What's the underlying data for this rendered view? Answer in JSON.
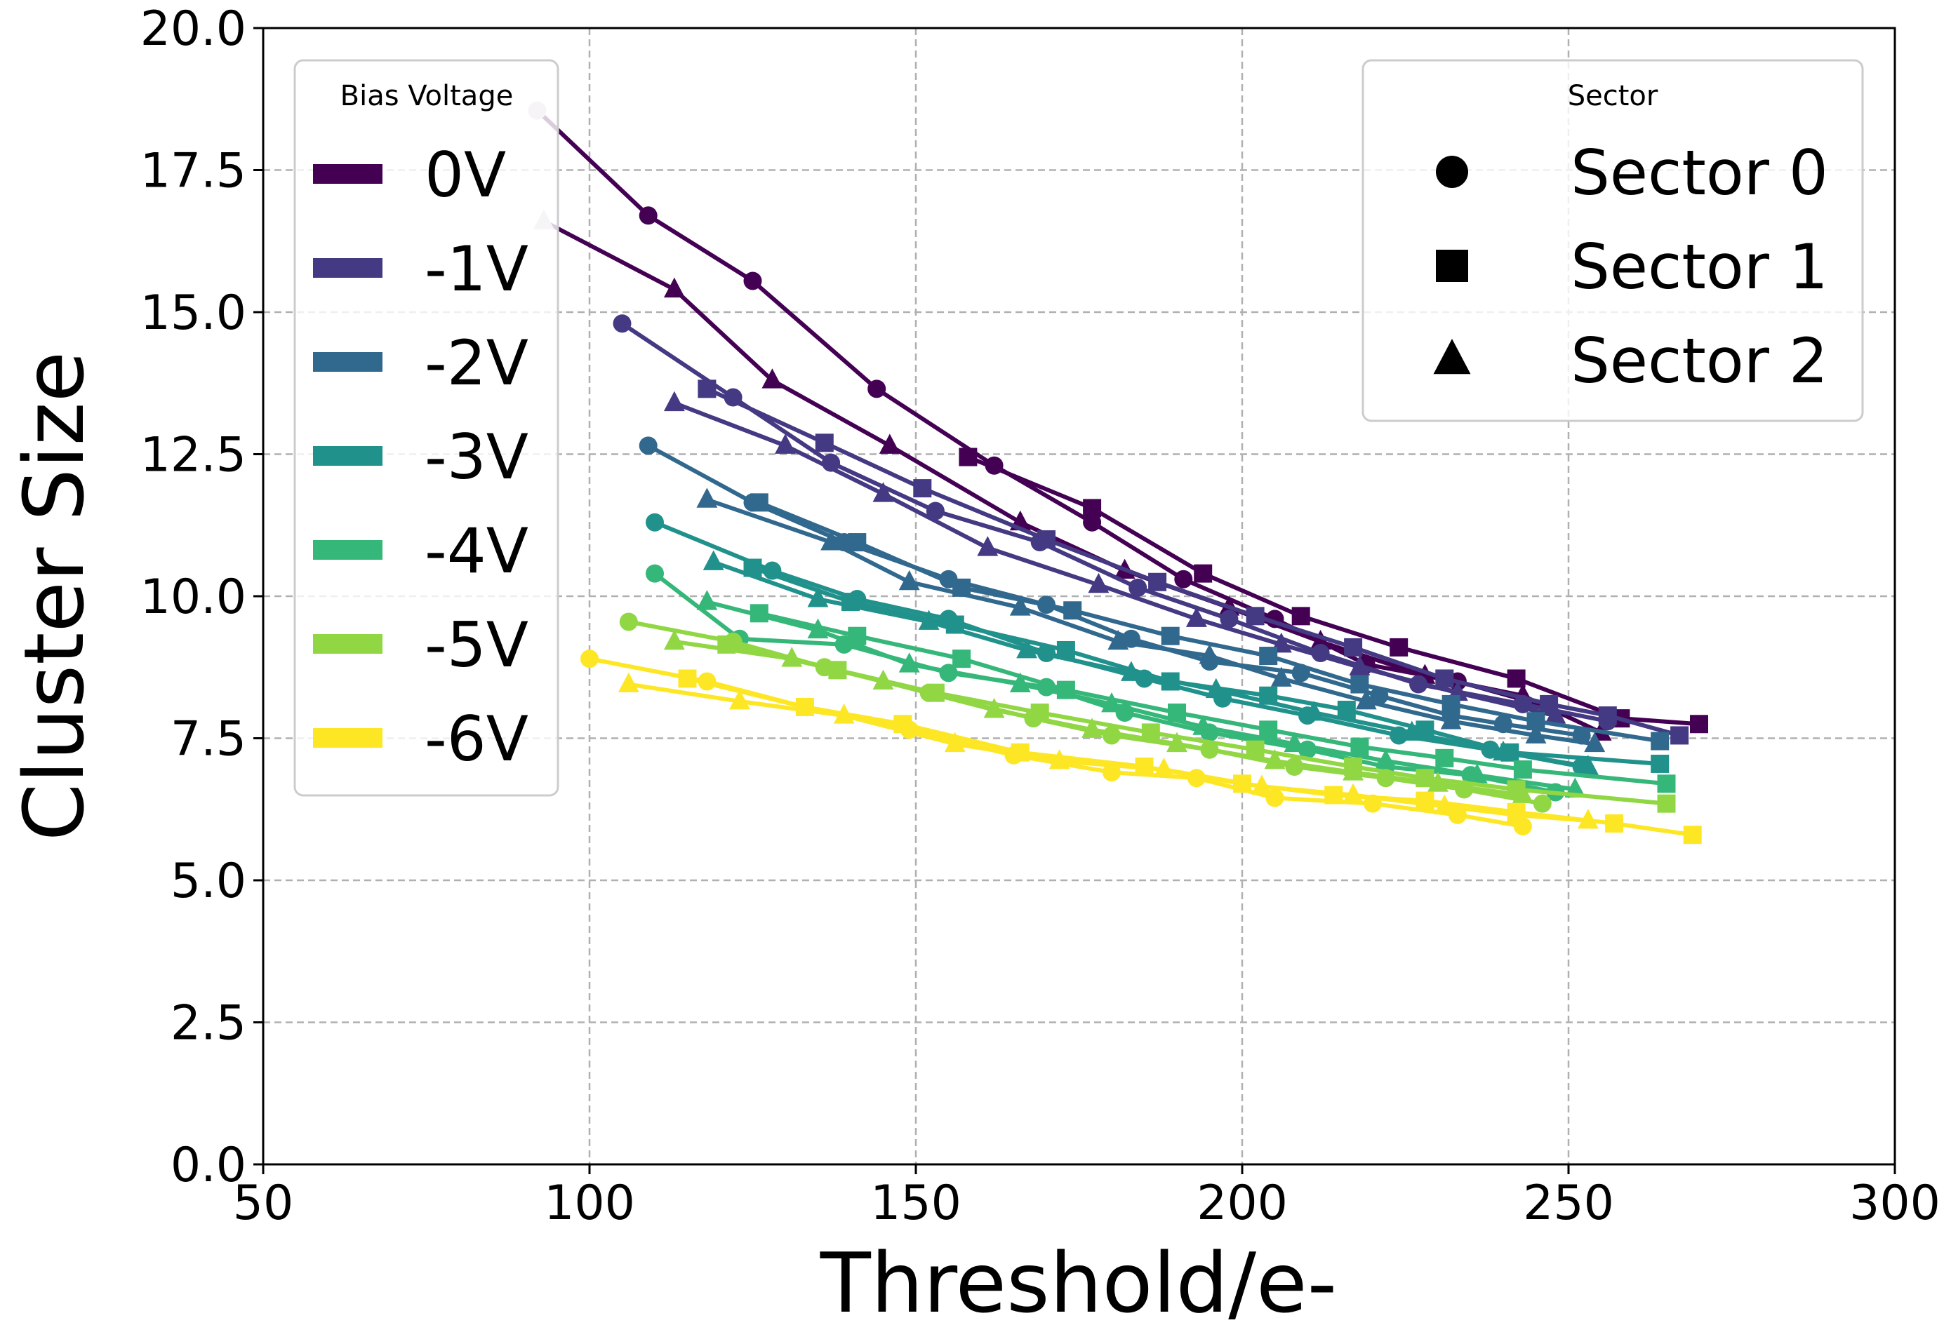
{
  "chart_data": {
    "type": "line",
    "title": "",
    "xlabel": "Threshold/e-",
    "ylabel": "Cluster Size",
    "xlim": [
      50,
      300
    ],
    "ylim": [
      0,
      20
    ],
    "xticks": [
      50,
      100,
      150,
      200,
      250,
      300
    ],
    "yticks": [
      0,
      2.5,
      5,
      7.5,
      10,
      12.5,
      15,
      17.5,
      20
    ],
    "xtick_labels": [
      "50",
      "100",
      "150",
      "200",
      "250",
      "300"
    ],
    "ytick_labels": [
      "0.0",
      "2.5",
      "5.0",
      "7.5",
      "10.0",
      "12.5",
      "15.0",
      "17.5",
      "20.0"
    ],
    "grid": true,
    "legend_voltage": {
      "title": "Bias Voltage",
      "position": "upper-left",
      "entries": [
        {
          "label": "0V",
          "color": "#440154"
        },
        {
          "label": "-1V",
          "color": "#443983"
        },
        {
          "label": "-2V",
          "color": "#31688e"
        },
        {
          "label": "-3V",
          "color": "#21918c"
        },
        {
          "label": "-4V",
          "color": "#35b779"
        },
        {
          "label": "-5V",
          "color": "#90d743"
        },
        {
          "label": "-6V",
          "color": "#fde725"
        }
      ]
    },
    "legend_sector": {
      "title": "Sector",
      "position": "upper-right",
      "entries": [
        {
          "label": "Sector 0",
          "marker": "circle"
        },
        {
          "label": "Sector 1",
          "marker": "square"
        },
        {
          "label": "Sector 2",
          "marker": "triangle"
        }
      ]
    },
    "series": [
      {
        "name": "0V Sector 0",
        "voltage": "0V",
        "sector": "Sector 0",
        "marker": "circle",
        "color": "#440154",
        "first_marker_color": "#d8c8dc",
        "x": [
          92,
          109,
          125,
          144,
          162,
          177,
          191,
          205,
          219,
          233,
          247
        ],
        "y": [
          18.55,
          16.7,
          15.55,
          13.65,
          12.3,
          11.3,
          10.3,
          9.6,
          8.8,
          8.5,
          8.05
        ]
      },
      {
        "name": "0V Sector 1",
        "voltage": "0V",
        "sector": "Sector 1",
        "marker": "square",
        "color": "#440154",
        "x": [
          158,
          177,
          194,
          209,
          224,
          242,
          258,
          270
        ],
        "y": [
          12.45,
          11.55,
          10.4,
          9.65,
          9.1,
          8.55,
          7.85,
          7.75
        ]
      },
      {
        "name": "0V Sector 2",
        "voltage": "0V",
        "sector": "Sector 2",
        "marker": "triangle",
        "color": "#440154",
        "first_marker_color": "#d8c8dc",
        "x": [
          93,
          113,
          128,
          146,
          166,
          182,
          198,
          212,
          228,
          243,
          255
        ],
        "y": [
          16.6,
          15.4,
          13.8,
          12.65,
          11.3,
          10.45,
          9.8,
          9.2,
          8.6,
          8.25,
          7.6
        ]
      },
      {
        "name": "-1V Sector 0",
        "voltage": "-1V",
        "sector": "Sector 0",
        "marker": "circle",
        "color": "#443983",
        "x": [
          105,
          122,
          137,
          153,
          169,
          184,
          198,
          212,
          227,
          243,
          256
        ],
        "y": [
          14.8,
          13.5,
          12.35,
          11.5,
          10.95,
          10.15,
          9.6,
          9.0,
          8.45,
          8.1,
          7.8
        ]
      },
      {
        "name": "-1V Sector 1",
        "voltage": "-1V",
        "sector": "Sector 1",
        "marker": "square",
        "color": "#443983",
        "x": [
          118,
          136,
          151,
          170,
          187,
          202,
          217,
          231,
          247,
          256,
          267
        ],
        "y": [
          13.65,
          12.7,
          11.9,
          11.0,
          10.25,
          9.65,
          9.1,
          8.55,
          8.1,
          7.9,
          7.55
        ]
      },
      {
        "name": "-1V Sector 2",
        "voltage": "-1V",
        "sector": "Sector 2",
        "marker": "triangle",
        "color": "#443983",
        "x": [
          113,
          130,
          145,
          161,
          178,
          193,
          206,
          218,
          233,
          248
        ],
        "y": [
          13.4,
          12.65,
          11.8,
          10.85,
          10.2,
          9.6,
          9.15,
          8.75,
          8.3,
          7.9
        ]
      },
      {
        "name": "-2V Sector 0",
        "voltage": "-2V",
        "sector": "Sector 0",
        "marker": "circle",
        "color": "#31688e",
        "x": [
          109,
          125,
          139,
          155,
          170,
          183,
          195,
          209,
          221,
          232,
          240,
          252
        ],
        "y": [
          12.65,
          11.65,
          10.95,
          10.3,
          9.85,
          9.25,
          8.85,
          8.65,
          8.25,
          7.9,
          7.75,
          7.55
        ]
      },
      {
        "name": "-2V Sector 1",
        "voltage": "-2V",
        "sector": "Sector 1",
        "marker": "square",
        "color": "#31688e",
        "x": [
          126,
          141,
          157,
          174,
          189,
          204,
          218,
          232,
          245,
          264
        ],
        "y": [
          11.65,
          10.95,
          10.15,
          9.75,
          9.3,
          8.95,
          8.45,
          8.1,
          7.8,
          7.45
        ]
      },
      {
        "name": "-2V Sector 2",
        "voltage": "-2V",
        "sector": "Sector 2",
        "marker": "triangle",
        "color": "#31688e",
        "x": [
          118,
          137,
          149,
          166,
          181,
          195,
          206,
          219,
          232,
          245,
          254
        ],
        "y": [
          11.7,
          10.95,
          10.25,
          9.8,
          9.2,
          8.95,
          8.55,
          8.15,
          7.8,
          7.55,
          7.4
        ]
      },
      {
        "name": "-3V Sector 0",
        "voltage": "-3V",
        "sector": "Sector 0",
        "marker": "circle",
        "color": "#21918c",
        "x": [
          110,
          128,
          141,
          155,
          170,
          185,
          197,
          210,
          224,
          238,
          252
        ],
        "y": [
          11.3,
          10.45,
          9.95,
          9.6,
          9.0,
          8.55,
          8.2,
          7.9,
          7.55,
          7.3,
          7.0
        ]
      },
      {
        "name": "-3V Sector 1",
        "voltage": "-3V",
        "sector": "Sector 1",
        "marker": "square",
        "color": "#21918c",
        "x": [
          125,
          140,
          156,
          173,
          189,
          204,
          216,
          228,
          241,
          264
        ],
        "y": [
          10.5,
          9.9,
          9.5,
          9.05,
          8.5,
          8.25,
          8.0,
          7.65,
          7.25,
          7.05
        ]
      },
      {
        "name": "-3V Sector 2",
        "voltage": "-3V",
        "sector": "Sector 2",
        "marker": "triangle",
        "color": "#21918c",
        "x": [
          119,
          135,
          152,
          167,
          183,
          196,
          211,
          226,
          240,
          253
        ],
        "y": [
          10.6,
          9.95,
          9.55,
          9.05,
          8.65,
          8.35,
          7.95,
          7.6,
          7.25,
          7.0
        ]
      },
      {
        "name": "-4V Sector 0",
        "voltage": "-4V",
        "sector": "Sector 0",
        "marker": "circle",
        "color": "#35b779",
        "x": [
          110,
          123,
          139,
          155,
          170,
          182,
          195,
          210,
          222,
          235,
          248
        ],
        "y": [
          10.4,
          9.25,
          9.15,
          8.65,
          8.4,
          7.95,
          7.6,
          7.3,
          7.0,
          6.85,
          6.55
        ]
      },
      {
        "name": "-4V Sector 1",
        "voltage": "-4V",
        "sector": "Sector 1",
        "marker": "square",
        "color": "#35b779",
        "x": [
          126,
          141,
          157,
          173,
          190,
          204,
          218,
          231,
          243,
          265
        ],
        "y": [
          9.7,
          9.3,
          8.9,
          8.35,
          7.95,
          7.65,
          7.35,
          7.15,
          6.95,
          6.7
        ]
      },
      {
        "name": "-4V Sector 2",
        "voltage": "-4V",
        "sector": "Sector 2",
        "marker": "triangle",
        "color": "#35b779",
        "x": [
          118,
          135,
          149,
          166,
          180,
          194,
          208,
          222,
          236,
          251
        ],
        "y": [
          9.9,
          9.4,
          8.8,
          8.45,
          8.1,
          7.7,
          7.4,
          7.1,
          6.85,
          6.6
        ]
      },
      {
        "name": "-5V Sector 0",
        "voltage": "-5V",
        "sector": "Sector 0",
        "marker": "circle",
        "color": "#90d743",
        "x": [
          106,
          122,
          136,
          152,
          168,
          180,
          195,
          208,
          222,
          234,
          246
        ],
        "y": [
          9.55,
          9.2,
          8.75,
          8.3,
          7.85,
          7.55,
          7.3,
          7.0,
          6.8,
          6.6,
          6.35
        ]
      },
      {
        "name": "-5V Sector 1",
        "voltage": "-5V",
        "sector": "Sector 1",
        "marker": "square",
        "color": "#90d743",
        "x": [
          121,
          138,
          153,
          169,
          186,
          202,
          217,
          228,
          242,
          265
        ],
        "y": [
          9.15,
          8.7,
          8.3,
          7.95,
          7.6,
          7.3,
          7.0,
          6.8,
          6.6,
          6.35
        ]
      },
      {
        "name": "-5V Sector 2",
        "voltage": "-5V",
        "sector": "Sector 2",
        "marker": "triangle",
        "color": "#90d743",
        "x": [
          113,
          131,
          145,
          162,
          177,
          190,
          205,
          217,
          230,
          243
        ],
        "y": [
          9.2,
          8.9,
          8.5,
          8.0,
          7.65,
          7.4,
          7.1,
          6.9,
          6.7,
          6.5
        ]
      },
      {
        "name": "-6V Sector 0",
        "voltage": "-6V",
        "sector": "Sector 0",
        "marker": "circle",
        "color": "#fde725",
        "x": [
          100,
          118,
          133,
          149,
          165,
          180,
          193,
          205,
          220,
          233,
          243
        ],
        "y": [
          8.9,
          8.5,
          8.05,
          7.65,
          7.2,
          6.9,
          6.8,
          6.45,
          6.35,
          6.15,
          5.95
        ]
      },
      {
        "name": "-6V Sector 1",
        "voltage": "-6V",
        "sector": "Sector 1",
        "marker": "square",
        "color": "#fde725",
        "x": [
          115,
          133,
          148,
          166,
          185,
          200,
          214,
          228,
          242,
          257,
          269
        ],
        "y": [
          8.55,
          8.05,
          7.75,
          7.25,
          7.0,
          6.7,
          6.5,
          6.4,
          6.2,
          6.0,
          5.8
        ]
      },
      {
        "name": "-6V Sector 2",
        "voltage": "-6V",
        "sector": "Sector 2",
        "marker": "triangle",
        "color": "#fde725",
        "x": [
          106,
          123,
          139,
          156,
          172,
          188,
          203,
          217,
          231,
          242,
          253
        ],
        "y": [
          8.45,
          8.15,
          7.9,
          7.4,
          7.1,
          6.95,
          6.65,
          6.5,
          6.3,
          6.15,
          6.05
        ]
      }
    ]
  }
}
